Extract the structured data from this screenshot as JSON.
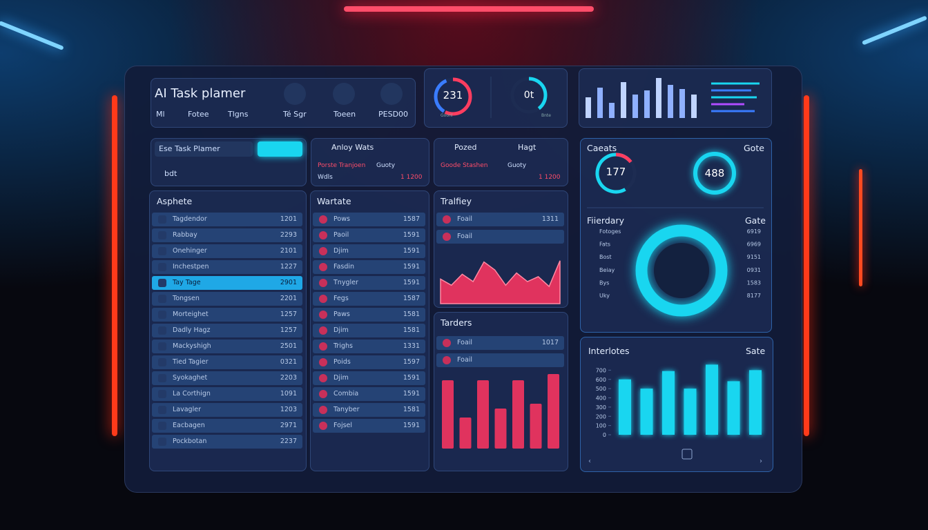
{
  "header": {
    "title": "AI Task plamer",
    "tabs": [
      "Ml",
      "Fotee",
      "Tlgns"
    ],
    "actions": [
      "Té Sgr",
      "Toeen",
      "PESD00"
    ],
    "gauges": [
      {
        "value": "231",
        "label": "Goonl"
      },
      {
        "value": "0t",
        "label": "Bnte"
      }
    ],
    "mini_bars": {
      "values": [
        30,
        44,
        22,
        52,
        34,
        40,
        58,
        48,
        42,
        34
      ],
      "ylim": [
        0,
        60
      ]
    }
  },
  "planner": {
    "title": "Ese Task Plamer",
    "filter": "bdt"
  },
  "activity": {
    "title": "Anloy Wats",
    "row_label": "Porste Tranjoen",
    "row_status": "Guoty",
    "row_sub": "Wdls",
    "row_value": "1 1200"
  },
  "posted": {
    "title": "Pozed",
    "action": "Hagt",
    "row_label": "Goode Stashen",
    "row_status": "Guoty",
    "row_value": "1 1200"
  },
  "asphete": {
    "title": "Asphete",
    "selected": 4,
    "rows": [
      [
        "Tagdendor",
        "1201"
      ],
      [
        "Rabbay",
        "2293"
      ],
      [
        "Onehinger",
        "2101"
      ],
      [
        "Inchestpen",
        "1227"
      ],
      [
        "Tay Tage",
        "2901"
      ],
      [
        "Tongsen",
        "2201"
      ],
      [
        "Morteighet",
        "1257"
      ],
      [
        "Dadly Hagz",
        "1257"
      ],
      [
        "Mackyshigh",
        "2501"
      ],
      [
        "Tied Tagier",
        "0321"
      ],
      [
        "Syokaghet",
        "2203"
      ],
      [
        "La Corthign",
        "1091"
      ],
      [
        "Lavagler",
        "1203"
      ],
      [
        "Eacbagen",
        "2971"
      ],
      [
        "Pockbotan",
        "2237"
      ]
    ]
  },
  "wartate": {
    "title": "Wartate",
    "rows": [
      [
        "Pows",
        "1587"
      ],
      [
        "Paoil",
        "1591"
      ],
      [
        "Djim",
        "1591"
      ],
      [
        "Fasdin",
        "1591"
      ],
      [
        "Tnygler",
        "1591"
      ],
      [
        "Fegs",
        "1587"
      ],
      [
        "Paws",
        "1581"
      ],
      [
        "Djim",
        "1581"
      ],
      [
        "Trighs",
        "1331"
      ],
      [
        "Poids",
        "1597"
      ],
      [
        "Djim",
        "1591"
      ],
      [
        "Combia",
        "1591"
      ],
      [
        "Tanyber",
        "1581"
      ],
      [
        "Fojsel",
        "1591"
      ]
    ]
  },
  "tralfiey": {
    "title": "Tralfiey",
    "rows": [
      [
        "Foail",
        "1311"
      ],
      [
        "Foail",
        ""
      ]
    ],
    "area": {
      "values": [
        40,
        30,
        48,
        36,
        68,
        55,
        30,
        50,
        36,
        44,
        28,
        70
      ],
      "ylim": [
        0,
        90
      ]
    }
  },
  "tarders": {
    "title": "Tarders",
    "rows": [
      [
        "Foail",
        "1017"
      ],
      [
        "Foail",
        ""
      ]
    ],
    "bars": {
      "values": [
        99,
        45,
        99,
        58,
        99,
        65,
        108
      ],
      "ylim": [
        0,
        120
      ]
    }
  },
  "caeats": {
    "title": "Caeats",
    "right": "Gote",
    "rings": [
      {
        "value": 177
      },
      {
        "value": 488
      }
    ],
    "list_title": "Fiierdary",
    "list_right": "Gate",
    "rows": [
      [
        "Fotoges",
        "6919"
      ],
      [
        "Fats",
        "6969"
      ],
      [
        "Bost",
        "9151"
      ],
      [
        "Beiay",
        "0931"
      ],
      [
        "Bys",
        "1583"
      ],
      [
        "Uky",
        "8177"
      ]
    ]
  },
  "interlotes": {
    "title": "Interlotes",
    "right": "Sate",
    "ylim": [
      0,
      800
    ],
    "yticks": [
      0,
      100,
      200,
      300,
      400,
      500,
      600,
      700
    ],
    "values": [
      600,
      500,
      690,
      500,
      760,
      580,
      700
    ]
  }
}
